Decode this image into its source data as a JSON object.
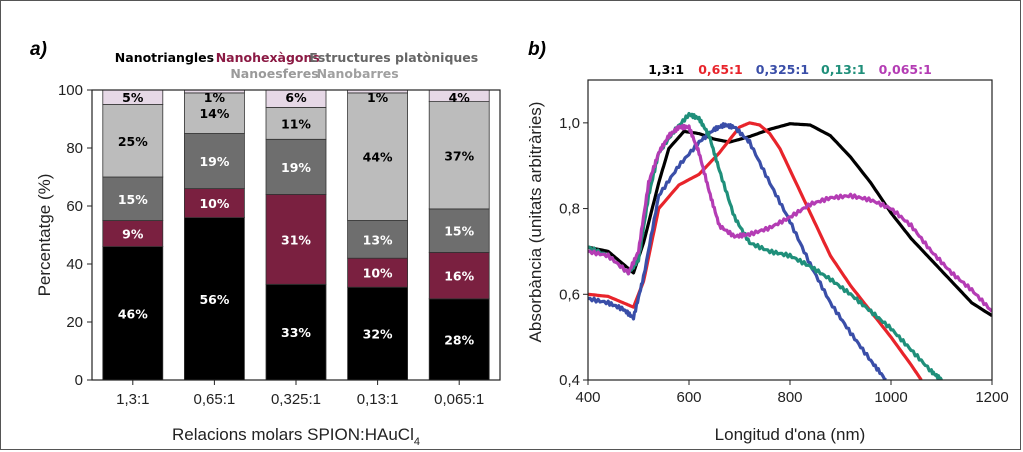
{
  "figure": {
    "panel_a_label": "a)",
    "panel_b_label": "b)"
  },
  "chart_data": [
    {
      "type": "bar",
      "stacked": true,
      "panel": "a)",
      "xlabel": "Relacions molars SPION:HAuCl",
      "xlabel_subscript": "4",
      "ylabel": "Percentatge (%)",
      "ylim": [
        0,
        100
      ],
      "yticks": [
        0,
        20,
        40,
        60,
        80,
        100
      ],
      "categories": [
        "1,3:1",
        "0,65:1",
        "0,325:1",
        "0,13:1",
        "0,065:1"
      ],
      "series": [
        {
          "name": "Nanotriangles",
          "color": "#000000",
          "label_color": "#ffffff",
          "values": [
            46,
            56,
            33,
            32,
            28
          ]
        },
        {
          "name": "Nanohexàgons",
          "color": "#7a2040",
          "label_color": "#ffffff",
          "values": [
            9,
            10,
            31,
            10,
            16
          ]
        },
        {
          "name": "Estructures platòniques",
          "color": "#6e6e6e",
          "label_color": "#ffffff",
          "values": [
            15,
            19,
            19,
            13,
            15
          ]
        },
        {
          "name": "Nanoesferes",
          "color": "#bcbcbc",
          "label_color": "#000000",
          "values": [
            25,
            14,
            11,
            44,
            37
          ]
        },
        {
          "name": "Nanobarres",
          "color": "#e6d8e6",
          "label_color": "#000000",
          "values": [
            5,
            1,
            6,
            1,
            4
          ]
        }
      ],
      "legend_colors": [
        "#000000",
        "#8b1a44",
        "#666666",
        "#9a9a9a",
        "#a0a0a0"
      ]
    },
    {
      "type": "line",
      "panel": "b)",
      "xlabel": "Longitud d'ona (nm)",
      "ylabel": "Absorbància (unitats arbitràries)",
      "xlim": [
        400,
        1200
      ],
      "ylim": [
        0.4,
        1.1
      ],
      "xticks": [
        400,
        600,
        800,
        1000,
        1200
      ],
      "yticks": [
        "0,4",
        "0,6",
        "0,8",
        "1,0"
      ],
      "ytick_values": [
        0.4,
        0.6,
        0.8,
        1.0
      ],
      "series": [
        {
          "name": "1,3:1",
          "color": "#000000",
          "x": [
            400,
            440,
            470,
            490,
            510,
            540,
            560,
            590,
            620,
            650,
            680,
            720,
            760,
            800,
            840,
            880,
            920,
            960,
            1000,
            1040,
            1080,
            1120,
            1160,
            1200
          ],
          "y": [
            0.71,
            0.7,
            0.67,
            0.65,
            0.72,
            0.86,
            0.94,
            0.98,
            0.975,
            0.962,
            0.955,
            0.968,
            0.985,
            0.998,
            0.995,
            0.97,
            0.92,
            0.86,
            0.79,
            0.73,
            0.68,
            0.63,
            0.58,
            0.55
          ]
        },
        {
          "name": "0,65:1",
          "color": "#e8242b",
          "x": [
            400,
            440,
            470,
            490,
            510,
            540,
            580,
            620,
            660,
            700,
            720,
            740,
            760,
            780,
            800,
            840,
            880,
            920,
            960,
            1000,
            1040,
            1060
          ],
          "y": [
            0.6,
            0.595,
            0.58,
            0.57,
            0.63,
            0.8,
            0.855,
            0.88,
            0.93,
            0.99,
            1.0,
            0.995,
            0.975,
            0.94,
            0.89,
            0.79,
            0.69,
            0.62,
            0.56,
            0.5,
            0.435,
            0.4
          ]
        },
        {
          "name": "0,325:1",
          "color": "#3a4ea8",
          "x": [
            400,
            440,
            470,
            490,
            510,
            540,
            580,
            620,
            650,
            670,
            690,
            720,
            760,
            800,
            840,
            880,
            920,
            960,
            990
          ],
          "y": [
            0.59,
            0.58,
            0.565,
            0.545,
            0.64,
            0.83,
            0.9,
            0.955,
            0.985,
            0.995,
            0.99,
            0.955,
            0.86,
            0.77,
            0.67,
            0.58,
            0.51,
            0.445,
            0.4
          ]
        },
        {
          "name": "0,13:1",
          "color": "#1f8f7a",
          "x": [
            400,
            440,
            480,
            500,
            520,
            540,
            570,
            600,
            620,
            640,
            660,
            690,
            720,
            760,
            800,
            840,
            880,
            920,
            960,
            1000,
            1040,
            1080,
            1100
          ],
          "y": [
            0.71,
            0.69,
            0.65,
            0.68,
            0.83,
            0.93,
            0.98,
            1.02,
            1.01,
            0.97,
            0.89,
            0.78,
            0.72,
            0.7,
            0.69,
            0.665,
            0.635,
            0.6,
            0.56,
            0.52,
            0.47,
            0.42,
            0.4
          ]
        },
        {
          "name": "0,065:1",
          "color": "#b43cb4",
          "x": [
            400,
            440,
            480,
            500,
            520,
            540,
            560,
            580,
            600,
            620,
            640,
            660,
            690,
            720,
            760,
            800,
            840,
            880,
            920,
            960,
            1000,
            1040,
            1080,
            1120,
            1160,
            1200
          ],
          "y": [
            0.7,
            0.69,
            0.65,
            0.7,
            0.86,
            0.93,
            0.97,
            0.99,
            0.99,
            0.93,
            0.84,
            0.76,
            0.735,
            0.74,
            0.755,
            0.78,
            0.81,
            0.825,
            0.83,
            0.82,
            0.8,
            0.76,
            0.7,
            0.65,
            0.61,
            0.56
          ]
        }
      ]
    }
  ]
}
